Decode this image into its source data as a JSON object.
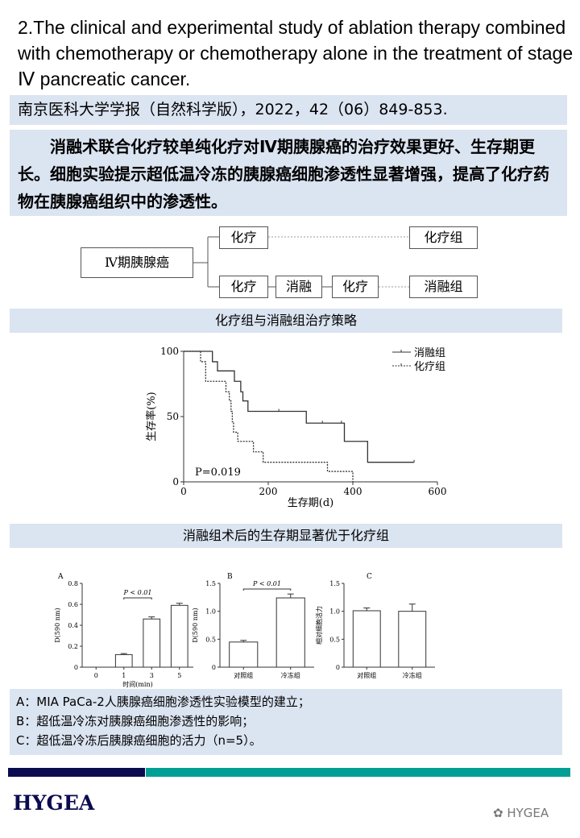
{
  "title": "2.The clinical and experimental study of ablation therapy combined with chemotherapy or chemotherapy alone in the treatment of stage Ⅳ pancreatic cancer.",
  "citation": "南京医科大学学报（自然科学版），2022，42（06）849-853.",
  "summary": "消融术联合化疗较单纯化疗对Ⅳ期胰腺癌的治疗效果更好、生存期更长。细胞实验提示超低温冷冻的胰腺癌细胞渗透性显著增强，提高了化疗药物在胰腺癌组织中的渗透性。",
  "flowchart": {
    "start": "Ⅳ期胰腺癌",
    "chemo": "化疗",
    "ablation": "消融",
    "group_chemo": "化疗组",
    "group_ablation": "消融组"
  },
  "caption1": "化疗组与消融组治疗策略",
  "caption2": "消融组术后的生存期显著优于化疗组",
  "notes": [
    "A：MIA PaCa-2人胰腺癌细胞渗透性实验模型的建立；",
    "B：超低温冷冻对胰腺癌细胞渗透性的影响；",
    "C：超低温冷冻后胰腺癌细胞的活力（n=5）。"
  ],
  "footer": {
    "logo": "HYGEA",
    "watermark": "HYGEA",
    "bar_colors": [
      "#0b0b4f",
      "#009e94"
    ]
  },
  "chart_data": [
    {
      "type": "line",
      "xlabel": "生存期(d)",
      "ylabel": "生存率(%)",
      "xlim": [
        0,
        600
      ],
      "ylim": [
        0,
        100
      ],
      "xticks": [
        0,
        200,
        400,
        600
      ],
      "yticks": [
        0,
        50,
        100
      ],
      "annotation": "P=0.019",
      "legend": "top-right",
      "series": [
        {
          "name": "消融组",
          "style": "solid",
          "points": [
            [
              0,
              100
            ],
            [
              68,
              100
            ],
            [
              68,
              92
            ],
            [
              80,
              92
            ],
            [
              80,
              85
            ],
            [
              120,
              85
            ],
            [
              120,
              77
            ],
            [
              135,
              77
            ],
            [
              135,
              69
            ],
            [
              140,
              69
            ],
            [
              140,
              62
            ],
            [
              152,
              62
            ],
            [
              152,
              54
            ],
            [
              290,
              54
            ],
            [
              290,
              45
            ],
            [
              380,
              45
            ],
            [
              380,
              31
            ],
            [
              435,
              31
            ],
            [
              435,
              15
            ],
            [
              545,
              15
            ]
          ],
          "censored": [
            [
              225,
              54
            ],
            [
              328,
              45
            ],
            [
              373,
              45
            ],
            [
              545,
              15
            ]
          ]
        },
        {
          "name": "化疗组",
          "style": "dashed",
          "points": [
            [
              0,
              100
            ],
            [
              40,
              100
            ],
            [
              40,
              92
            ],
            [
              52,
              92
            ],
            [
              52,
              77
            ],
            [
              100,
              77
            ],
            [
              100,
              69
            ],
            [
              108,
              69
            ],
            [
              108,
              62
            ],
            [
              112,
              62
            ],
            [
              112,
              54
            ],
            [
              115,
              54
            ],
            [
              115,
              46
            ],
            [
              118,
              46
            ],
            [
              118,
              38
            ],
            [
              128,
              38
            ],
            [
              128,
              31
            ],
            [
              165,
              31
            ],
            [
              165,
              23
            ],
            [
              188,
              23
            ],
            [
              188,
              15
            ],
            [
              340,
              15
            ],
            [
              340,
              8
            ],
            [
              400,
              8
            ],
            [
              400,
              0
            ]
          ],
          "censored": []
        }
      ]
    },
    {
      "type": "bar",
      "panel": "A",
      "categories": [
        "0",
        "1",
        "3",
        "5"
      ],
      "values": [
        0,
        0.12,
        0.46,
        0.59
      ],
      "errors": [
        0,
        0.01,
        0.02,
        0.02
      ],
      "ylim": [
        0,
        0.8
      ],
      "yticks": [
        "0",
        "0.2",
        "0.4",
        "0.6",
        "0.8"
      ],
      "ylabel": "D(590 nm)",
      "xlabel": "时间(min)",
      "annotation": "P < 0.01",
      "bracket": [
        1,
        2
      ]
    },
    {
      "type": "bar",
      "panel": "B",
      "categories": [
        "对照组",
        "冷冻组"
      ],
      "values": [
        0.45,
        1.24
      ],
      "errors": [
        0.03,
        0.07
      ],
      "ylim": [
        0,
        1.5
      ],
      "yticks": [
        "0",
        "0.5",
        "1.0",
        "1.5"
      ],
      "ylabel": "D(590 nm)",
      "xlabel": "",
      "annotation": "P < 0.01",
      "bracket": [
        0,
        1
      ]
    },
    {
      "type": "bar",
      "panel": "C",
      "categories": [
        "对照组",
        "冷冻组"
      ],
      "values": [
        1.01,
        1.0
      ],
      "errors": [
        0.05,
        0.13
      ],
      "ylim": [
        0,
        1.5
      ],
      "yticks": [
        "0",
        "0.5",
        "1.0",
        "1.5"
      ],
      "ylabel": "相对细胞活力",
      "xlabel": "",
      "annotation": "",
      "bracket": null
    }
  ]
}
